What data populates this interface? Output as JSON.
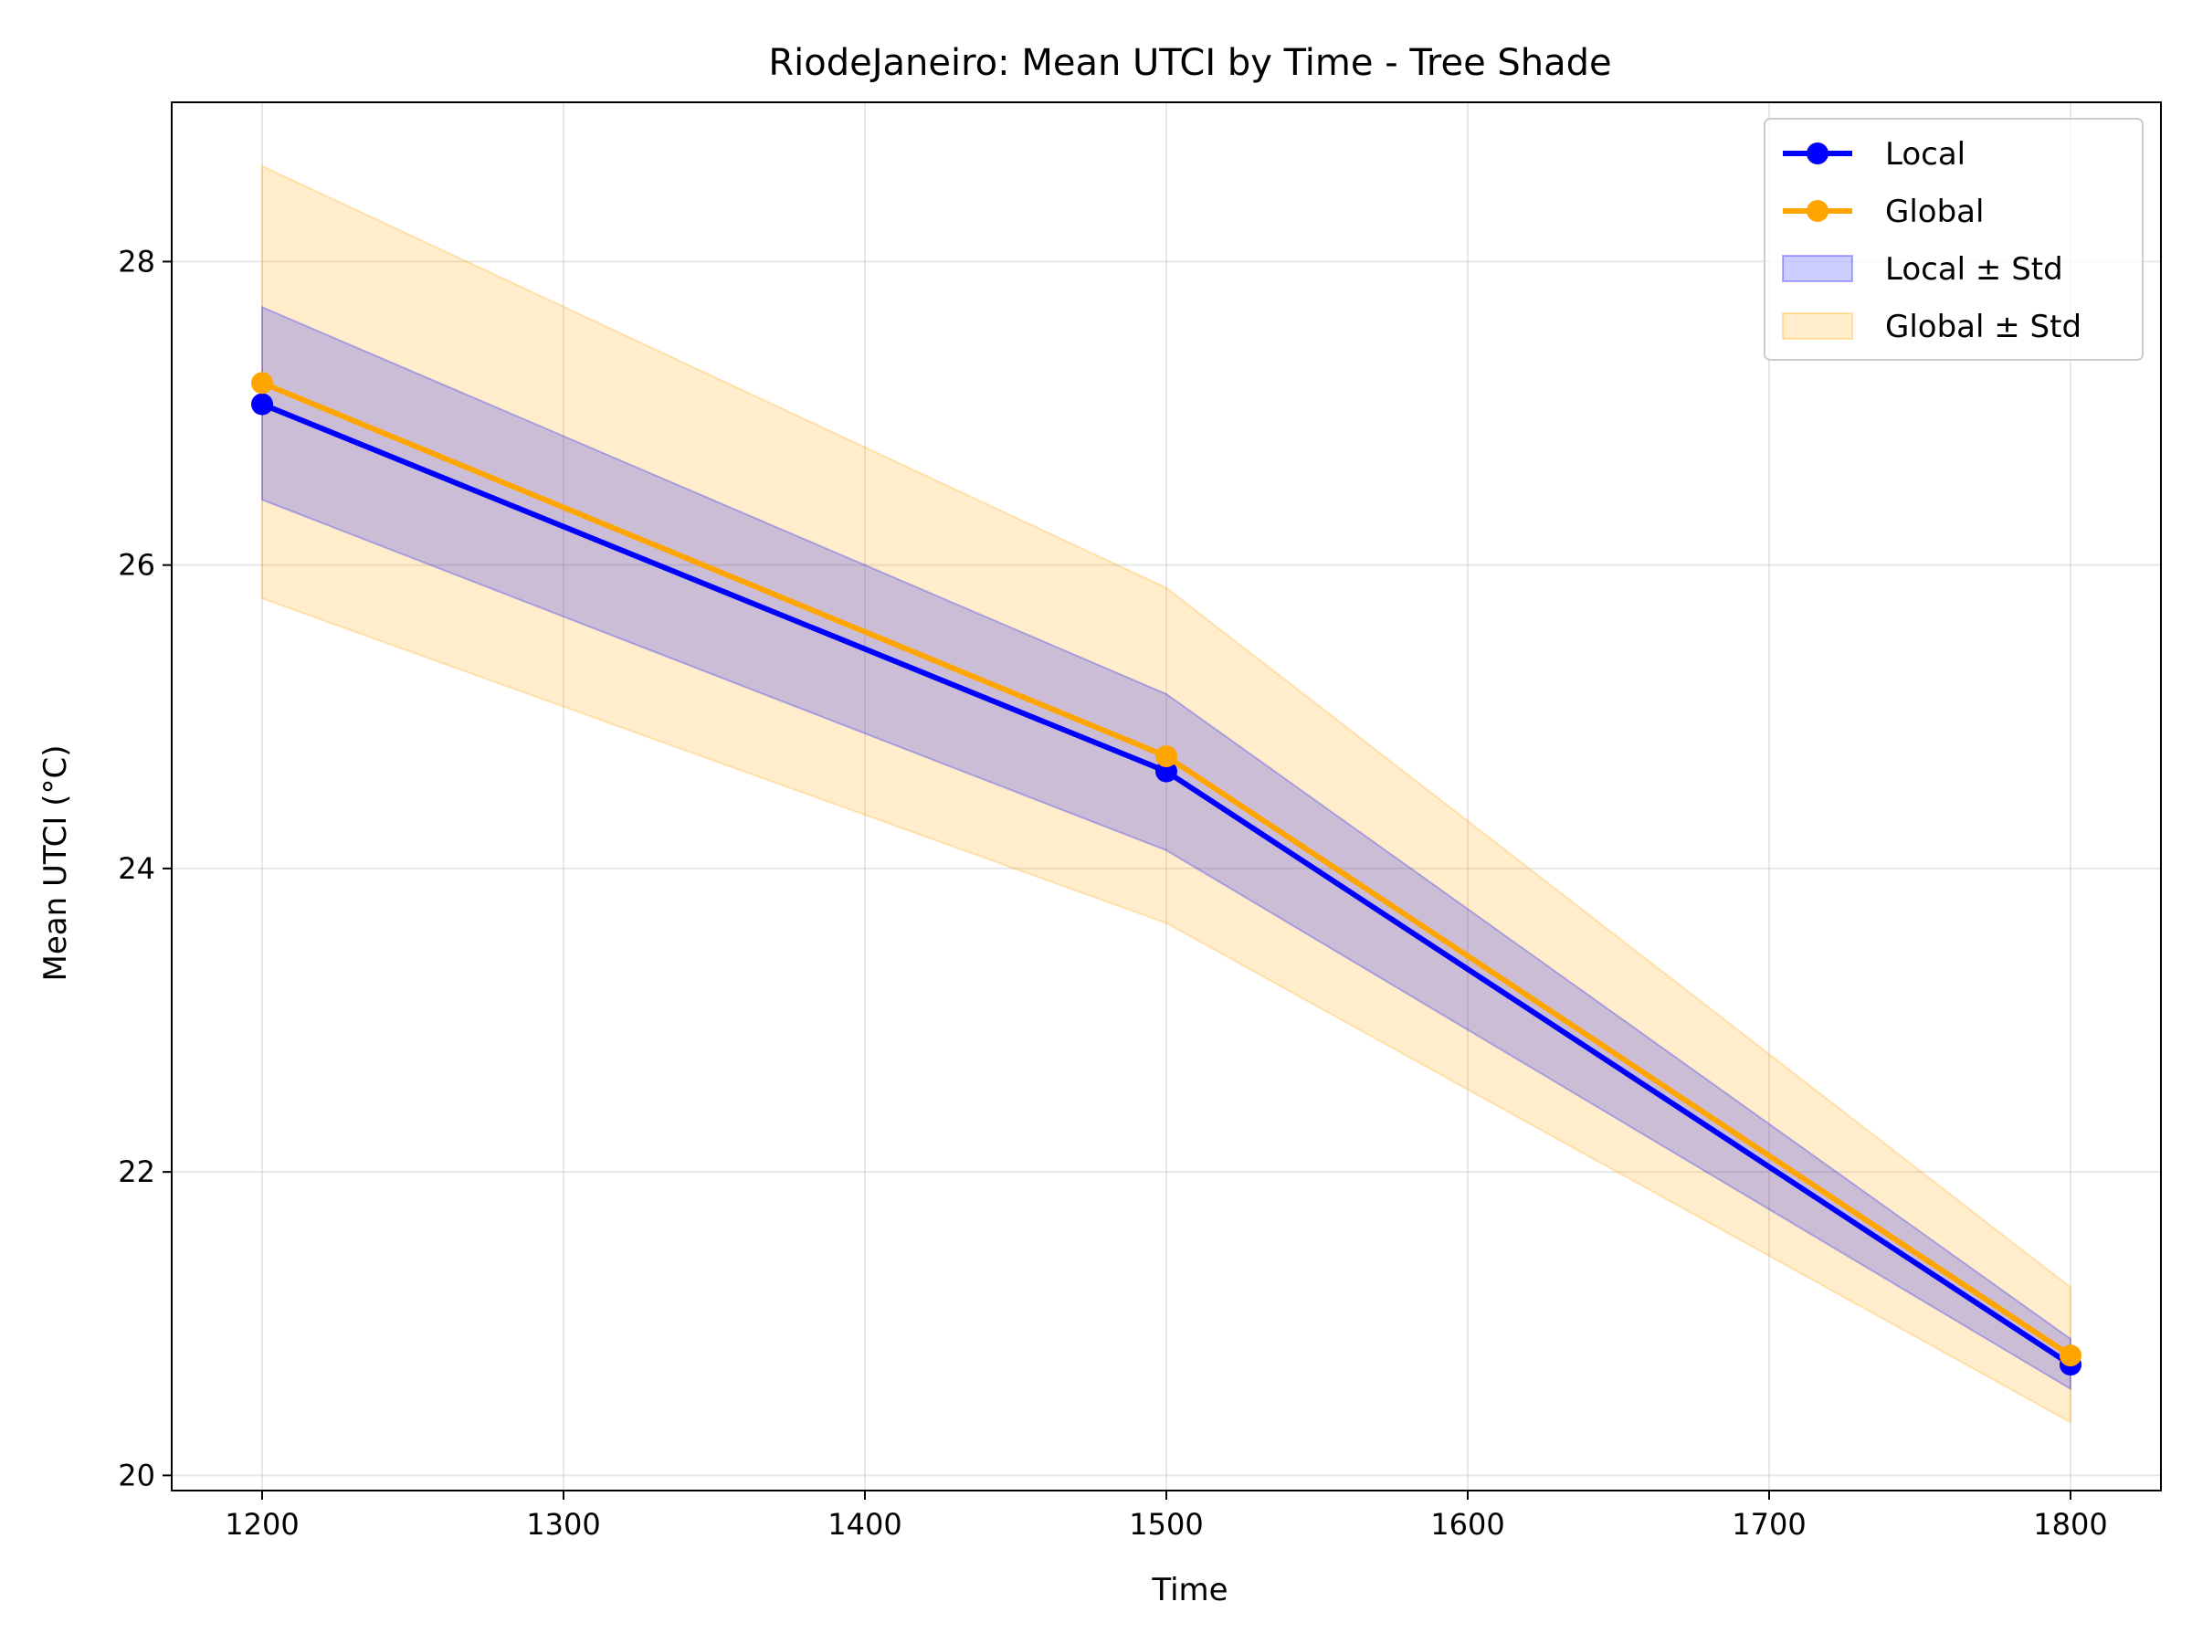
{
  "chart_data": {
    "type": "line",
    "title": "RiodeJaneiro: Mean UTCI by Time - Tree Shade",
    "xlabel": "Time",
    "ylabel": "Mean UTCI (°C)",
    "xlim": [
      1170,
      1830
    ],
    "ylim": [
      19.9,
      29.05
    ],
    "xticks": [
      1200,
      1300,
      1400,
      1500,
      1600,
      1700,
      1800
    ],
    "yticks": [
      20,
      22,
      24,
      26,
      28
    ],
    "grid": true,
    "legend_position": "top-right",
    "x": [
      1200,
      1500,
      1800
    ],
    "series": [
      {
        "name": "Local",
        "values": [
          27.06,
          24.64,
          20.73
        ],
        "color": "#0000ff",
        "marker": "circle"
      },
      {
        "name": "Global",
        "values": [
          27.2,
          24.74,
          20.79
        ],
        "color": "#ffa500",
        "marker": "circle"
      }
    ],
    "bands": [
      {
        "name": "Local ± Std",
        "lower": [
          26.43,
          24.12,
          20.57
        ],
        "upper": [
          27.7,
          25.15,
          20.9
        ],
        "color": "#0000ff",
        "opacity": 0.2
      },
      {
        "name": "Global ± Std",
        "lower": [
          25.78,
          23.64,
          20.35
        ],
        "upper": [
          28.63,
          25.85,
          21.24
        ],
        "color": "#ffa500",
        "opacity": 0.2
      }
    ]
  }
}
